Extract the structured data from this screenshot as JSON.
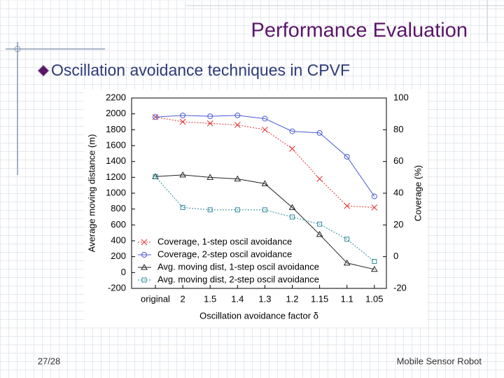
{
  "title": "Performance Evaluation",
  "bullet": "Oscillation avoidance techniques in CPVF",
  "footer": {
    "page": "27/28",
    "text": "Mobile Sensor Robot"
  },
  "chart_data": {
    "type": "line",
    "xlabel": "Oscillation avoidance factor δ",
    "ylabel": "Average moving distance (m)",
    "y2label": "Coverage (%)",
    "categories": [
      "original",
      "2",
      "1.5",
      "1.4",
      "1.3",
      "1.2",
      "1.15",
      "1.1",
      "1.05"
    ],
    "ylim": [
      -200,
      2200
    ],
    "yticks": [
      -200,
      0,
      200,
      400,
      600,
      800,
      1000,
      1200,
      1400,
      1600,
      1800,
      2000,
      2200
    ],
    "y2lim": [
      -20,
      100
    ],
    "y2ticks": [
      -20,
      0,
      20,
      40,
      60,
      80,
      100
    ],
    "series": [
      {
        "name": "Coverage, 1-step oscil avoidance",
        "color": "#e03030",
        "marker": "x",
        "dash": true,
        "axis": "y2",
        "values": [
          88,
          85,
          84,
          83,
          80,
          68,
          49,
          32,
          31
        ]
      },
      {
        "name": "Coverage, 2-step oscil avoidance",
        "color": "#4a5bd0",
        "marker": "circle",
        "dash": false,
        "axis": "y2",
        "values": [
          88,
          89,
          88.5,
          89,
          87,
          79,
          78,
          63,
          38
        ]
      },
      {
        "name": "Avg. moving dist, 1-step oscil avoidance",
        "color": "#222222",
        "marker": "triangle",
        "dash": false,
        "values": [
          1210,
          1230,
          1200,
          1180,
          1120,
          820,
          480,
          120,
          40
        ]
      },
      {
        "name": "Avg. moving dist, 2-step oscil avoidance",
        "color": "#2a8a9a",
        "marker": "square",
        "dash": true,
        "values": [
          1210,
          820,
          790,
          790,
          790,
          700,
          610,
          420,
          140
        ]
      }
    ]
  }
}
